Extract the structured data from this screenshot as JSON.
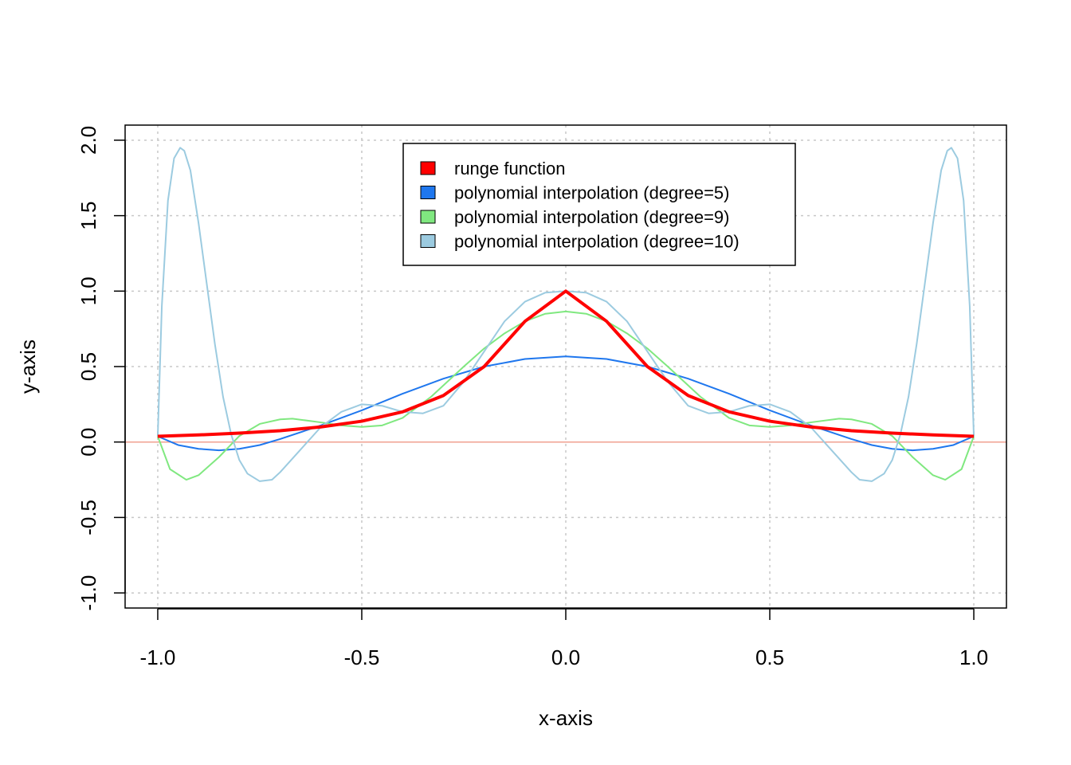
{
  "chart_data": {
    "type": "line",
    "title": "",
    "xlabel": "x-axis",
    "ylabel": "y-axis",
    "xlim": [
      -1.08,
      1.08
    ],
    "ylim": [
      -1.1,
      2.1
    ],
    "x_ticks": [
      -1.0,
      -0.5,
      0.0,
      0.5,
      1.0
    ],
    "x_tick_labels": [
      "-1.0",
      "-0.5",
      "0.0",
      "0.5",
      "1.0"
    ],
    "y_ticks": [
      -1.0,
      -0.5,
      0.0,
      0.5,
      1.0,
      1.5,
      2.0
    ],
    "y_tick_labels": [
      "-1.0",
      "-0.5",
      "0.0",
      "0.5",
      "1.0",
      "1.5",
      "2.0"
    ],
    "grid": true,
    "reference_line": {
      "y": 0,
      "color": "#f0a090"
    },
    "legend": {
      "position": "top-center"
    },
    "series": [
      {
        "name": "runge function",
        "color": "#ff0000",
        "x": [
          -1.0,
          -0.9,
          -0.8,
          -0.7,
          -0.6,
          -0.5,
          -0.4,
          -0.3,
          -0.2,
          -0.1,
          0.0,
          0.1,
          0.2,
          0.3,
          0.4,
          0.5,
          0.6,
          0.7,
          0.8,
          0.9,
          1.0
        ],
        "values": [
          0.038,
          0.047,
          0.059,
          0.075,
          0.1,
          0.138,
          0.2,
          0.308,
          0.5,
          0.8,
          1.0,
          0.8,
          0.5,
          0.308,
          0.2,
          0.138,
          0.1,
          0.075,
          0.059,
          0.047,
          0.038
        ]
      },
      {
        "name": "polynomial interpolation (degree=5)",
        "color": "#1f77ee",
        "x": [
          -1.0,
          -0.95,
          -0.9,
          -0.85,
          -0.8,
          -0.75,
          -0.7,
          -0.6,
          -0.5,
          -0.4,
          -0.3,
          -0.2,
          -0.1,
          0.0,
          0.1,
          0.2,
          0.3,
          0.4,
          0.5,
          0.6,
          0.7,
          0.75,
          0.8,
          0.85,
          0.9,
          0.95,
          1.0
        ],
        "values": [
          0.038,
          -0.02,
          -0.045,
          -0.055,
          -0.045,
          -0.02,
          0.02,
          0.11,
          0.21,
          0.32,
          0.42,
          0.5,
          0.55,
          0.567,
          0.55,
          0.5,
          0.42,
          0.32,
          0.21,
          0.11,
          0.02,
          -0.02,
          -0.045,
          -0.055,
          -0.045,
          -0.02,
          0.038
        ]
      },
      {
        "name": "polynomial interpolation (degree=9)",
        "color": "#80e880",
        "x": [
          -1.0,
          -0.97,
          -0.93,
          -0.9,
          -0.85,
          -0.8,
          -0.75,
          -0.7,
          -0.67,
          -0.6,
          -0.55,
          -0.5,
          -0.45,
          -0.4,
          -0.33,
          -0.25,
          -0.2,
          -0.15,
          -0.1,
          -0.05,
          0.0,
          0.05,
          0.1,
          0.15,
          0.2,
          0.25,
          0.33,
          0.4,
          0.45,
          0.5,
          0.55,
          0.6,
          0.67,
          0.7,
          0.75,
          0.8,
          0.85,
          0.9,
          0.93,
          0.97,
          1.0
        ],
        "values": [
          0.038,
          -0.18,
          -0.25,
          -0.22,
          -0.1,
          0.04,
          0.12,
          0.15,
          0.155,
          0.13,
          0.11,
          0.1,
          0.11,
          0.16,
          0.3,
          0.5,
          0.62,
          0.72,
          0.8,
          0.85,
          0.865,
          0.85,
          0.8,
          0.72,
          0.62,
          0.5,
          0.3,
          0.16,
          0.11,
          0.1,
          0.11,
          0.13,
          0.155,
          0.15,
          0.12,
          0.04,
          -0.1,
          -0.22,
          -0.25,
          -0.18,
          0.038
        ]
      },
      {
        "name": "polynomial interpolation (degree=10)",
        "color": "#9ccbe0",
        "x": [
          -1.0,
          -0.99,
          -0.975,
          -0.96,
          -0.945,
          -0.935,
          -0.92,
          -0.9,
          -0.88,
          -0.86,
          -0.84,
          -0.82,
          -0.8,
          -0.78,
          -0.75,
          -0.72,
          -0.7,
          -0.65,
          -0.6,
          -0.55,
          -0.5,
          -0.45,
          -0.4,
          -0.35,
          -0.3,
          -0.25,
          -0.2,
          -0.15,
          -0.1,
          -0.05,
          0.0,
          0.05,
          0.1,
          0.15,
          0.2,
          0.25,
          0.3,
          0.35,
          0.4,
          0.45,
          0.5,
          0.55,
          0.6,
          0.65,
          0.7,
          0.72,
          0.75,
          0.78,
          0.8,
          0.82,
          0.84,
          0.86,
          0.88,
          0.9,
          0.92,
          0.935,
          0.945,
          0.96,
          0.975,
          0.99,
          1.0
        ],
        "values": [
          0.038,
          0.9,
          1.6,
          1.88,
          1.95,
          1.93,
          1.8,
          1.45,
          1.05,
          0.65,
          0.3,
          0.05,
          -0.12,
          -0.21,
          -0.26,
          -0.25,
          -0.2,
          -0.05,
          0.1,
          0.2,
          0.25,
          0.24,
          0.2,
          0.19,
          0.24,
          0.4,
          0.6,
          0.8,
          0.93,
          0.99,
          1.0,
          0.99,
          0.93,
          0.8,
          0.6,
          0.4,
          0.24,
          0.19,
          0.2,
          0.24,
          0.25,
          0.2,
          0.1,
          -0.05,
          -0.2,
          -0.25,
          -0.26,
          -0.21,
          -0.12,
          0.05,
          0.3,
          0.65,
          1.05,
          1.45,
          1.8,
          1.93,
          1.95,
          1.88,
          1.6,
          0.9,
          0.038
        ]
      }
    ]
  }
}
